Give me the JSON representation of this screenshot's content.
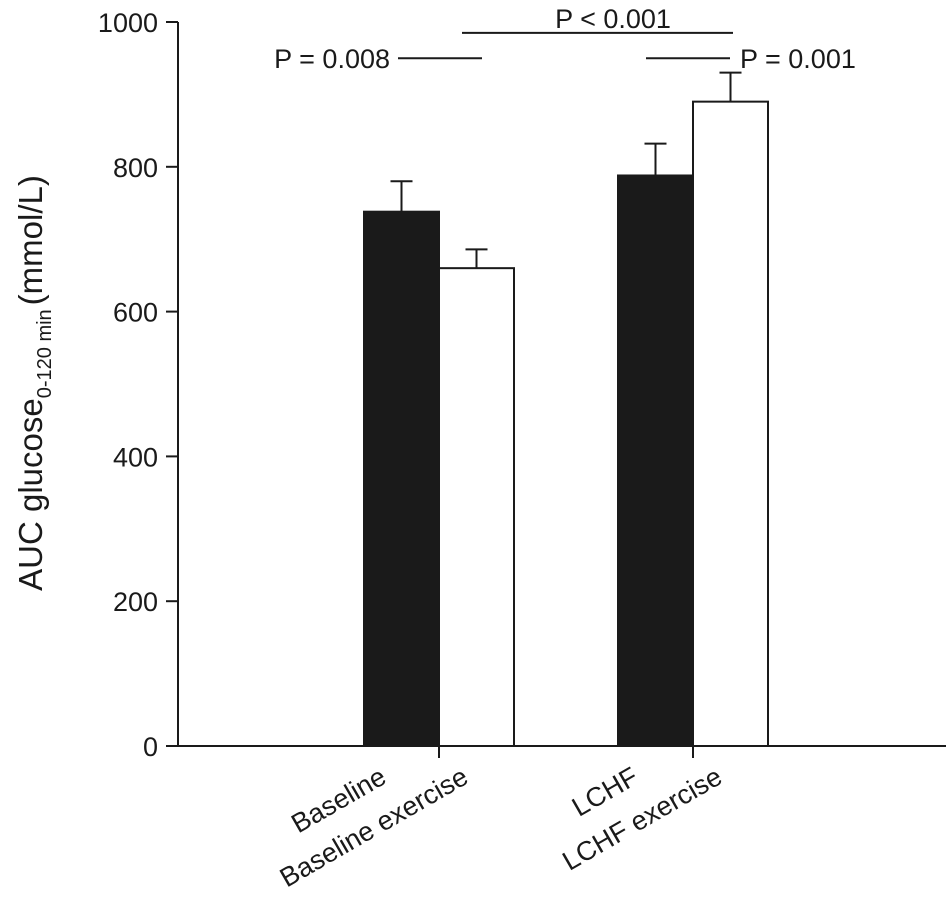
{
  "chart_data": {
    "type": "bar",
    "categories": [
      "Baseline",
      "Baseline exercise",
      "LCHF",
      "LCHF exercise"
    ],
    "groups": [
      {
        "bars": [
          {
            "label": "Baseline",
            "value": 738,
            "error": 42,
            "fill": "#1a1a1a"
          },
          {
            "label": "Baseline exercise",
            "value": 660,
            "error": 26,
            "fill": "#ffffff"
          }
        ]
      },
      {
        "bars": [
          {
            "label": "LCHF",
            "value": 788,
            "error": 44,
            "fill": "#1a1a1a"
          },
          {
            "label": "LCHF exercise",
            "value": 890,
            "error": 40,
            "fill": "#ffffff"
          }
        ]
      }
    ],
    "ylabel": {
      "main": "AUC glucose",
      "sub": "0-120 min",
      "unit": "(mmol/L)"
    },
    "ylim": [
      0,
      1000
    ],
    "yticks": [
      0,
      200,
      400,
      600,
      800,
      1000
    ],
    "grid": false,
    "annotations": [
      {
        "text": "P = 0.008",
        "value": 950
      },
      {
        "text": "P < 0.001",
        "value": 985
      },
      {
        "text": "P = 0.001",
        "value": 950
      }
    ]
  }
}
